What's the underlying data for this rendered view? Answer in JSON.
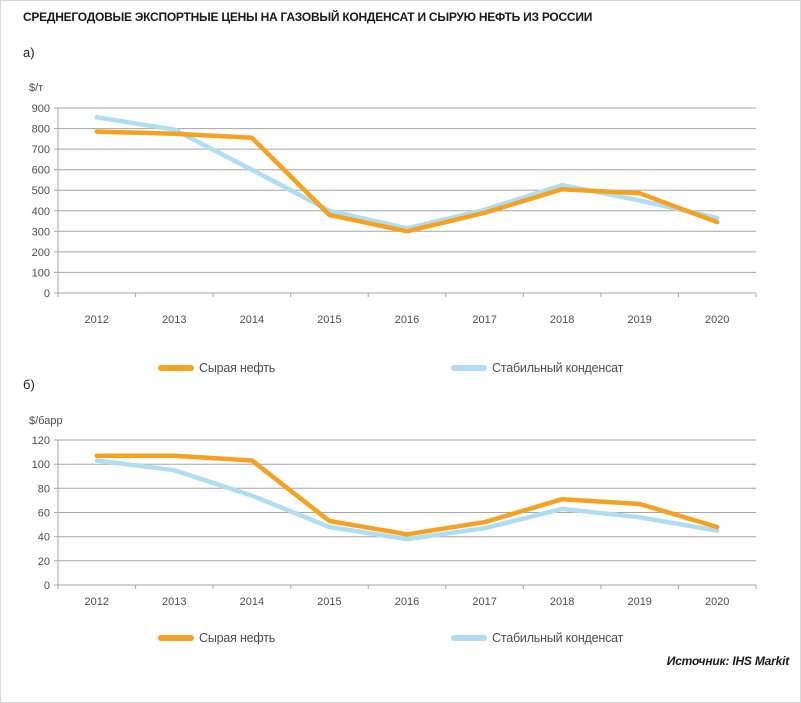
{
  "title": "СРЕДНЕГОДОВЫЕ ЭКСПОРТНЫЕ ЦЕНЫ НА ГАЗОВЫЙ КОНДЕНСАТ И СЫРУЮ НЕФТЬ ИЗ РОССИИ",
  "source": "Источник: IHS Markit",
  "legend": {
    "crude": "Сырая нефть",
    "condensate": "Стабильный конденсат"
  },
  "colors": {
    "crude": "#F6A11F",
    "condensate": "#AFDDF2",
    "grid": "#A6A6A6",
    "axis_text": "#4D4D4D"
  },
  "chart_data": [
    {
      "type": "line",
      "section_label": "а)",
      "ylabel": "$/т",
      "categories": [
        "2012",
        "2013",
        "2014",
        "2015",
        "2016",
        "2017",
        "2018",
        "2019",
        "2020"
      ],
      "series": [
        {
          "name": "Сырая нефть",
          "color_key": "crude",
          "values": [
            785,
            775,
            755,
            380,
            300,
            390,
            505,
            485,
            345
          ]
        },
        {
          "name": "Стабильный конденсат",
          "color_key": "condensate",
          "values": [
            855,
            795,
            600,
            400,
            315,
            405,
            525,
            450,
            365
          ]
        }
      ],
      "ylim": [
        0,
        900
      ],
      "ytick_step": 100,
      "grid": true,
      "legend_position": "bottom"
    },
    {
      "type": "line",
      "section_label": "б)",
      "ylabel": "$/барр",
      "categories": [
        "2012",
        "2013",
        "2014",
        "2015",
        "2016",
        "2017",
        "2018",
        "2019",
        "2020"
      ],
      "series": [
        {
          "name": "Сырая нефть",
          "color_key": "crude",
          "values": [
            107,
            107,
            103,
            53,
            42,
            52,
            71,
            67,
            48
          ]
        },
        {
          "name": "Стабильный конденсат",
          "color_key": "condensate",
          "values": [
            103,
            95,
            74,
            48,
            38,
            47,
            63,
            56,
            45
          ]
        }
      ],
      "ylim": [
        0,
        120
      ],
      "ytick_step": 20,
      "grid": true,
      "legend_position": "bottom"
    }
  ]
}
